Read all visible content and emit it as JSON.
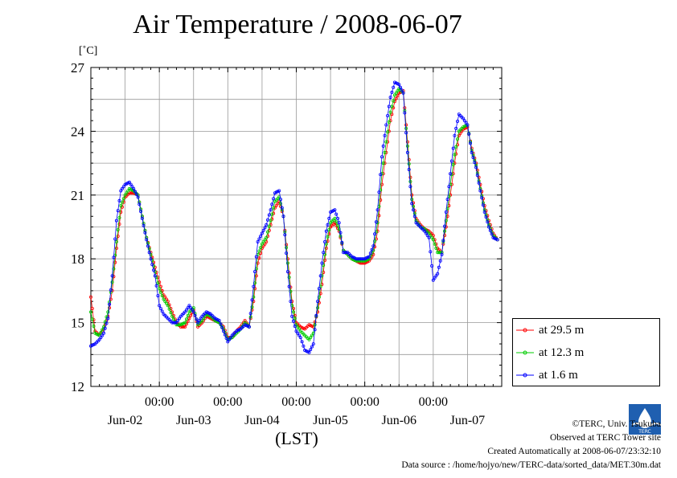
{
  "chart_data": {
    "type": "line",
    "title": "Air Temperature / 2008-06-07",
    "unit": "[˚C]",
    "xlabel": "(LST)",
    "ylim": [
      12,
      27
    ],
    "yticks": [
      12,
      15,
      18,
      21,
      24,
      27
    ],
    "x_hours_range": [
      0,
      144
    ],
    "x_tick_labels": [
      "00:00",
      "00:00",
      "00:00",
      "00:00",
      "00:00"
    ],
    "x_tick_hours": [
      24,
      48,
      72,
      96,
      120
    ],
    "day_labels": [
      "Jun-02",
      "Jun-03",
      "Jun-04",
      "Jun-05",
      "Jun-06",
      "Jun-07"
    ],
    "day_label_hours": [
      12,
      36,
      60,
      84,
      108,
      132
    ],
    "series": [
      {
        "name": "at 29.5 m",
        "color": "#ff0000",
        "points": [
          [
            0,
            16.2
          ],
          [
            1,
            14.6
          ],
          [
            2,
            14.4
          ],
          [
            3,
            14.7
          ],
          [
            4,
            15.3
          ],
          [
            5,
            16.5
          ],
          [
            6,
            18.5
          ],
          [
            7,
            20.2
          ],
          [
            8,
            20.9
          ],
          [
            9,
            21.1
          ],
          [
            10,
            21.1
          ],
          [
            11,
            21.0
          ],
          [
            12,
            20.0
          ],
          [
            13,
            19.0
          ],
          [
            14,
            18.3
          ],
          [
            15,
            17.6
          ],
          [
            16,
            16.9
          ],
          [
            17,
            16.3
          ],
          [
            18,
            16.0
          ],
          [
            19,
            15.5
          ],
          [
            20,
            15.0
          ],
          [
            21,
            14.8
          ],
          [
            22,
            14.8
          ],
          [
            23,
            15.2
          ],
          [
            24,
            15.6
          ],
          [
            25,
            14.8
          ],
          [
            26,
            15.0
          ],
          [
            27,
            15.3
          ],
          [
            28,
            15.2
          ],
          [
            29,
            15.1
          ],
          [
            30,
            15.0
          ],
          [
            31,
            14.8
          ],
          [
            32,
            14.3
          ],
          [
            33,
            14.3
          ],
          [
            34,
            14.6
          ],
          [
            35,
            14.8
          ],
          [
            36,
            15.1
          ],
          [
            37,
            14.8
          ],
          [
            38,
            16.0
          ],
          [
            39,
            17.8
          ],
          [
            40,
            18.5
          ],
          [
            41,
            18.8
          ],
          [
            42,
            19.6
          ],
          [
            43,
            20.4
          ],
          [
            44,
            20.7
          ],
          [
            45,
            20.0
          ],
          [
            46,
            18.0
          ],
          [
            47,
            16.0
          ],
          [
            48,
            15.0
          ],
          [
            49,
            14.8
          ],
          [
            50,
            14.7
          ],
          [
            51,
            14.9
          ],
          [
            52,
            14.8
          ],
          [
            53,
            15.5
          ],
          [
            54,
            16.8
          ],
          [
            55,
            18.5
          ],
          [
            56,
            19.5
          ],
          [
            57,
            19.7
          ],
          [
            58,
            19.3
          ],
          [
            59,
            18.4
          ],
          [
            60,
            18.2
          ],
          [
            61,
            18.0
          ],
          [
            62,
            17.9
          ],
          [
            63,
            17.8
          ],
          [
            64,
            17.8
          ],
          [
            65,
            17.9
          ],
          [
            66,
            18.2
          ],
          [
            67,
            19.3
          ],
          [
            68,
            21.5
          ],
          [
            69,
            23.0
          ],
          [
            70,
            24.5
          ],
          [
            71,
            25.4
          ],
          [
            72,
            25.8
          ],
          [
            73,
            25.9
          ],
          [
            74,
            23.5
          ],
          [
            75,
            21.0
          ],
          [
            76,
            19.9
          ],
          [
            77,
            19.6
          ],
          [
            78,
            19.4
          ],
          [
            79,
            19.3
          ],
          [
            80,
            19.1
          ],
          [
            81,
            18.5
          ],
          [
            82,
            18.3
          ],
          [
            83,
            19.5
          ],
          [
            84,
            21.0
          ],
          [
            85,
            22.5
          ],
          [
            86,
            23.8
          ],
          [
            87,
            24.1
          ],
          [
            88,
            24.2
          ],
          [
            89,
            23.2
          ],
          [
            90,
            22.5
          ],
          [
            91,
            21.5
          ],
          [
            92,
            20.5
          ],
          [
            93,
            19.8
          ],
          [
            94,
            19.2
          ],
          [
            95,
            18.9
          ]
        ]
      },
      {
        "name": "at 12.3 m",
        "color": "#00cc00",
        "points": [
          [
            0,
            15.5
          ],
          [
            1,
            14.5
          ],
          [
            2,
            14.4
          ],
          [
            3,
            14.8
          ],
          [
            4,
            15.5
          ],
          [
            5,
            16.9
          ],
          [
            6,
            18.8
          ],
          [
            7,
            20.5
          ],
          [
            8,
            21.0
          ],
          [
            9,
            21.3
          ],
          [
            10,
            21.2
          ],
          [
            11,
            21.0
          ],
          [
            12,
            20.0
          ],
          [
            13,
            19.0
          ],
          [
            14,
            18.2
          ],
          [
            15,
            17.4
          ],
          [
            16,
            16.6
          ],
          [
            17,
            16.1
          ],
          [
            18,
            15.8
          ],
          [
            19,
            15.3
          ],
          [
            20,
            14.9
          ],
          [
            21,
            14.9
          ],
          [
            22,
            15.0
          ],
          [
            23,
            15.5
          ],
          [
            24,
            15.7
          ],
          [
            25,
            14.9
          ],
          [
            26,
            15.1
          ],
          [
            27,
            15.4
          ],
          [
            28,
            15.3
          ],
          [
            29,
            15.1
          ],
          [
            30,
            15.0
          ],
          [
            31,
            14.7
          ],
          [
            32,
            14.2
          ],
          [
            33,
            14.3
          ],
          [
            34,
            14.5
          ],
          [
            35,
            14.7
          ],
          [
            36,
            15.0
          ],
          [
            37,
            14.8
          ],
          [
            38,
            16.2
          ],
          [
            39,
            18.2
          ],
          [
            40,
            18.7
          ],
          [
            41,
            19.0
          ],
          [
            42,
            19.8
          ],
          [
            43,
            20.7
          ],
          [
            44,
            20.9
          ],
          [
            45,
            20.0
          ],
          [
            46,
            17.8
          ],
          [
            47,
            15.8
          ],
          [
            48,
            14.9
          ],
          [
            49,
            14.6
          ],
          [
            50,
            14.4
          ],
          [
            51,
            14.2
          ],
          [
            52,
            14.5
          ],
          [
            53,
            15.7
          ],
          [
            54,
            17.2
          ],
          [
            55,
            18.7
          ],
          [
            56,
            19.7
          ],
          [
            57,
            19.9
          ],
          [
            58,
            19.4
          ],
          [
            59,
            18.4
          ],
          [
            60,
            18.2
          ],
          [
            61,
            18.0
          ],
          [
            62,
            17.9
          ],
          [
            63,
            17.9
          ],
          [
            64,
            17.9
          ],
          [
            65,
            18.0
          ],
          [
            66,
            18.4
          ],
          [
            67,
            19.7
          ],
          [
            68,
            22.0
          ],
          [
            69,
            23.5
          ],
          [
            70,
            24.9
          ],
          [
            71,
            25.7
          ],
          [
            72,
            26.0
          ],
          [
            73,
            25.8
          ],
          [
            74,
            23.3
          ],
          [
            75,
            20.8
          ],
          [
            76,
            19.8
          ],
          [
            77,
            19.5
          ],
          [
            78,
            19.4
          ],
          [
            79,
            19.2
          ],
          [
            80,
            18.9
          ],
          [
            81,
            18.3
          ],
          [
            82,
            18.3
          ],
          [
            83,
            19.8
          ],
          [
            84,
            21.5
          ],
          [
            85,
            22.9
          ],
          [
            86,
            24.0
          ],
          [
            87,
            24.2
          ],
          [
            88,
            24.3
          ],
          [
            89,
            23.1
          ],
          [
            90,
            22.4
          ],
          [
            91,
            21.3
          ],
          [
            92,
            20.3
          ],
          [
            93,
            19.6
          ],
          [
            94,
            19.1
          ],
          [
            95,
            18.9
          ]
        ]
      },
      {
        "name": "at 1.6 m",
        "color": "#0000ff",
        "points": [
          [
            0,
            13.9
          ],
          [
            1,
            14.0
          ],
          [
            2,
            14.2
          ],
          [
            3,
            14.5
          ],
          [
            4,
            15.2
          ],
          [
            5,
            17.2
          ],
          [
            6,
            19.8
          ],
          [
            7,
            21.2
          ],
          [
            8,
            21.5
          ],
          [
            9,
            21.6
          ],
          [
            10,
            21.3
          ],
          [
            11,
            20.9
          ],
          [
            12,
            19.9
          ],
          [
            13,
            18.9
          ],
          [
            14,
            18.0
          ],
          [
            15,
            17.2
          ],
          [
            16,
            15.8
          ],
          [
            17,
            15.4
          ],
          [
            18,
            15.2
          ],
          [
            19,
            15.0
          ],
          [
            20,
            15.0
          ],
          [
            21,
            15.3
          ],
          [
            22,
            15.5
          ],
          [
            23,
            15.8
          ],
          [
            24,
            15.5
          ],
          [
            25,
            15.0
          ],
          [
            26,
            15.3
          ],
          [
            27,
            15.5
          ],
          [
            28,
            15.4
          ],
          [
            29,
            15.2
          ],
          [
            30,
            15.1
          ],
          [
            31,
            14.6
          ],
          [
            32,
            14.1
          ],
          [
            33,
            14.4
          ],
          [
            34,
            14.6
          ],
          [
            35,
            14.7
          ],
          [
            36,
            14.9
          ],
          [
            37,
            14.8
          ],
          [
            38,
            16.7
          ],
          [
            39,
            18.8
          ],
          [
            40,
            19.2
          ],
          [
            41,
            19.6
          ],
          [
            42,
            20.3
          ],
          [
            43,
            21.1
          ],
          [
            44,
            21.2
          ],
          [
            45,
            20.0
          ],
          [
            46,
            17.4
          ],
          [
            47,
            15.3
          ],
          [
            48,
            14.6
          ],
          [
            49,
            14.3
          ],
          [
            50,
            13.7
          ],
          [
            51,
            13.6
          ],
          [
            52,
            14.0
          ],
          [
            53,
            16.0
          ],
          [
            54,
            17.8
          ],
          [
            55,
            19.3
          ],
          [
            56,
            20.2
          ],
          [
            57,
            20.3
          ],
          [
            58,
            19.7
          ],
          [
            59,
            18.3
          ],
          [
            60,
            18.3
          ],
          [
            61,
            18.1
          ],
          [
            62,
            18.0
          ],
          [
            63,
            18.0
          ],
          [
            64,
            18.0
          ],
          [
            65,
            18.1
          ],
          [
            66,
            18.6
          ],
          [
            67,
            20.3
          ],
          [
            68,
            22.8
          ],
          [
            69,
            24.3
          ],
          [
            70,
            25.6
          ],
          [
            71,
            26.3
          ],
          [
            72,
            26.2
          ],
          [
            73,
            25.8
          ],
          [
            74,
            23.0
          ],
          [
            75,
            20.6
          ],
          [
            76,
            19.7
          ],
          [
            77,
            19.5
          ],
          [
            78,
            19.3
          ],
          [
            79,
            19.0
          ],
          [
            80,
            17.0
          ],
          [
            81,
            17.3
          ],
          [
            82,
            18.2
          ],
          [
            83,
            20.2
          ],
          [
            84,
            22.0
          ],
          [
            85,
            23.8
          ],
          [
            86,
            24.8
          ],
          [
            87,
            24.6
          ],
          [
            88,
            24.3
          ],
          [
            89,
            23.0
          ],
          [
            90,
            22.3
          ],
          [
            91,
            21.2
          ],
          [
            92,
            20.2
          ],
          [
            93,
            19.5
          ],
          [
            94,
            19.0
          ],
          [
            95,
            18.9
          ]
        ]
      }
    ]
  },
  "footer": {
    "copyright": "©TERC, Univ. Tsukuba",
    "observed": "Observed at TERC Tower site",
    "created": "Created Automatically at 2008-06-07/23:32:10",
    "source": "Data source : /home/hojyo/new/TERC-data/sorted_data/MET.30m.dat"
  },
  "logo_text": "TERC"
}
